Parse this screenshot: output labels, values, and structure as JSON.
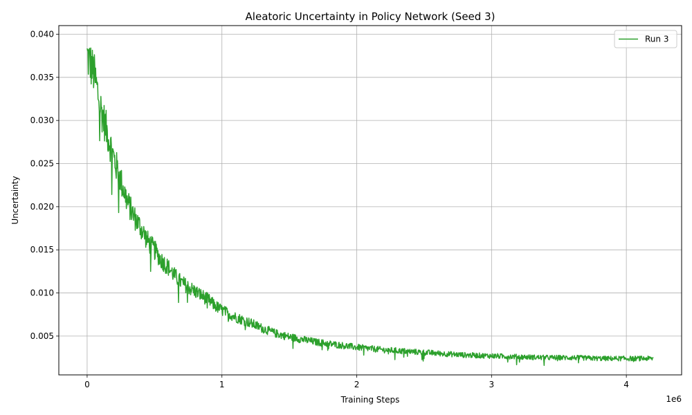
{
  "chart_data": {
    "type": "line",
    "title": "Aleatoric Uncertainty in Policy Network (Seed 3)",
    "xlabel": "Training Steps",
    "ylabel": "Uncertainty",
    "x_offset_label": "1e6",
    "xlim": [
      -0.21,
      4.41
    ],
    "ylim": [
      0.0005,
      0.041
    ],
    "x_scale": 1000000,
    "xticks": [
      0,
      1,
      2,
      3,
      4
    ],
    "xtick_labels": [
      "0",
      "1",
      "2",
      "3",
      "4"
    ],
    "yticks": [
      0.005,
      0.01,
      0.015,
      0.02,
      0.025,
      0.03,
      0.035,
      0.04
    ],
    "ytick_labels": [
      "0.005",
      "0.010",
      "0.015",
      "0.020",
      "0.025",
      "0.030",
      "0.035",
      "0.040"
    ],
    "grid": true,
    "legend_position": "top-right",
    "series": [
      {
        "name": "Run 3",
        "color": "#2ca02c",
        "x": [
          0,
          50000,
          100000,
          150000,
          200000,
          250000,
          300000,
          350000,
          400000,
          450000,
          500000,
          550000,
          600000,
          650000,
          700000,
          750000,
          800000,
          850000,
          900000,
          950000,
          1000000,
          1100000,
          1200000,
          1300000,
          1400000,
          1500000,
          1600000,
          1700000,
          1800000,
          1900000,
          2000000,
          2200000,
          2400000,
          2600000,
          2800000,
          3000000,
          3200000,
          3400000,
          3600000,
          3800000,
          4000000,
          4200000
        ],
        "y": [
          0.0375,
          0.0355,
          0.0315,
          0.0285,
          0.0255,
          0.023,
          0.0205,
          0.0188,
          0.0175,
          0.016,
          0.015,
          0.0138,
          0.013,
          0.012,
          0.0112,
          0.0107,
          0.0102,
          0.0097,
          0.0092,
          0.0085,
          0.008,
          0.0072,
          0.0066,
          0.0059,
          0.0053,
          0.0049,
          0.0046,
          0.0043,
          0.0041,
          0.0039,
          0.0037,
          0.0034,
          0.0032,
          0.003,
          0.0028,
          0.0027,
          0.0026,
          0.0025,
          0.0025,
          0.0024,
          0.0024,
          0.0024
        ]
      }
    ]
  }
}
